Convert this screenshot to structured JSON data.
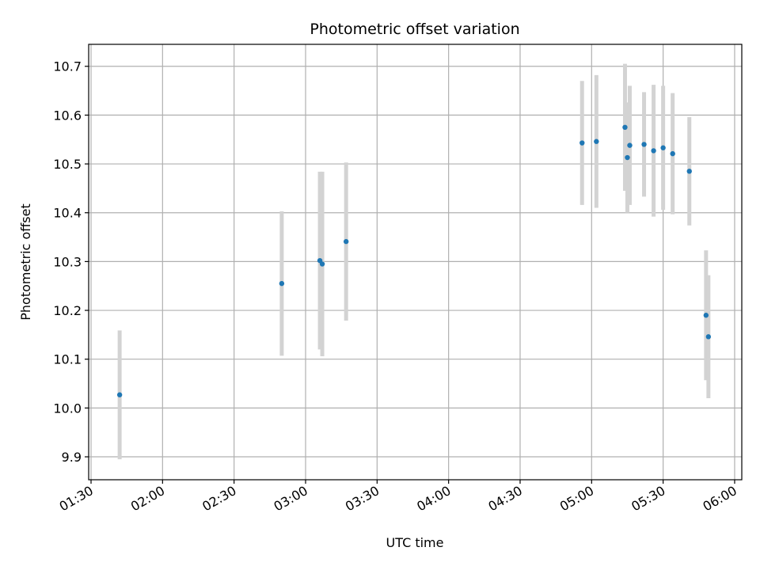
{
  "chart_data": {
    "type": "scatter",
    "title": "Photometric offset variation",
    "xlabel": "UTC time",
    "ylabel": "Photometric offset",
    "x_axis_type": "time",
    "xlim": [
      "01:29",
      "06:03"
    ],
    "ylim": [
      9.853,
      10.745
    ],
    "x_ticks": [
      "01:30",
      "02:00",
      "02:30",
      "03:00",
      "03:30",
      "04:00",
      "04:30",
      "05:00",
      "05:30",
      "06:00"
    ],
    "y_ticks": [
      9.9,
      10.0,
      10.1,
      10.2,
      10.3,
      10.4,
      10.5,
      10.6,
      10.7
    ],
    "y_tick_labels": [
      "9.9",
      "10.0",
      "10.1",
      "10.2",
      "10.3",
      "10.4",
      "10.5",
      "10.6",
      "10.7"
    ],
    "grid": true,
    "point_color": "#1f77b4",
    "errorbar_color": "#d3d3d3",
    "points": [
      {
        "x": "01:42",
        "y": 10.027,
        "err": 0.132
      },
      {
        "x": "02:50",
        "y": 10.255,
        "err": 0.148
      },
      {
        "x": "03:06",
        "y": 10.302,
        "err": 0.182
      },
      {
        "x": "03:07",
        "y": 10.295,
        "err": 0.189
      },
      {
        "x": "03:17",
        "y": 10.341,
        "err": 0.162
      },
      {
        "x": "04:56",
        "y": 10.543,
        "err": 0.127
      },
      {
        "x": "05:02",
        "y": 10.546,
        "err": 0.136
      },
      {
        "x": "05:14",
        "y": 10.575,
        "err": 0.13
      },
      {
        "x": "05:15",
        "y": 10.513,
        "err": 0.113
      },
      {
        "x": "05:16",
        "y": 10.538,
        "err": 0.122
      },
      {
        "x": "05:22",
        "y": 10.54,
        "err": 0.107
      },
      {
        "x": "05:26",
        "y": 10.527,
        "err": 0.135
      },
      {
        "x": "05:30",
        "y": 10.533,
        "err": 0.127
      },
      {
        "x": "05:34",
        "y": 10.521,
        "err": 0.124
      },
      {
        "x": "05:41",
        "y": 10.485,
        "err": 0.111
      },
      {
        "x": "05:48",
        "y": 10.19,
        "err": 0.133
      },
      {
        "x": "05:49",
        "y": 10.146,
        "err": 0.126
      }
    ]
  }
}
